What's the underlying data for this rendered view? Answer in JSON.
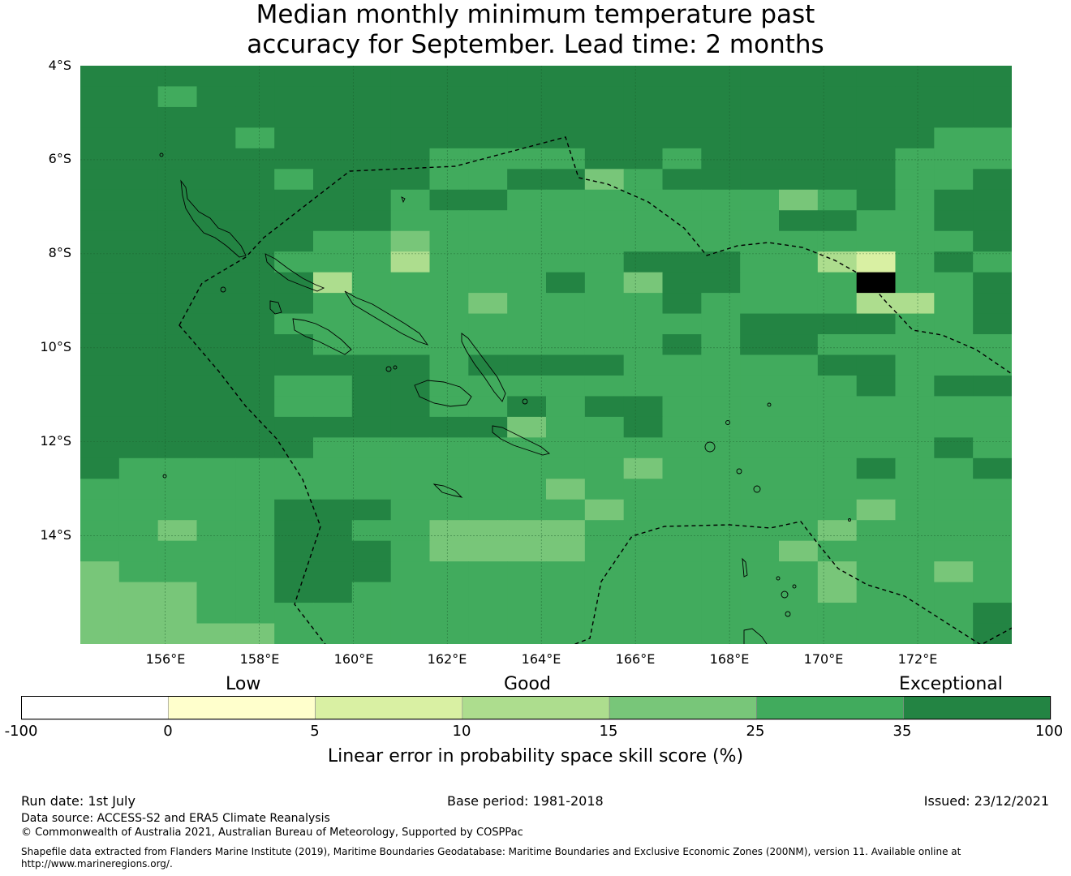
{
  "title": {
    "line1": "Median monthly minimum temperature past",
    "line2": "accuracy for September. Lead time: 2 months"
  },
  "map": {
    "lat_labels": [
      "4°S",
      "6°S",
      "8°S",
      "10°S",
      "12°S",
      "14°S"
    ],
    "lon_labels": [
      "156°E",
      "158°E",
      "160°E",
      "162°E",
      "164°E",
      "166°E",
      "168°E",
      "170°E",
      "172°E"
    ],
    "extent": {
      "lon_min": 154.2,
      "lon_max": 174.0,
      "lat_top": -4.0,
      "lat_bottom": -16.3
    },
    "grid_cells_deg": 0.8333,
    "legend_colors": [
      "#ffffff",
      "#ffffcc",
      "#d9f0a3",
      "#addd8e",
      "#78c679",
      "#41ab5d",
      "#238443"
    ],
    "cell_rows": [
      "666666666666666666666666",
      "665666666666666666666666",
      "666666666666666666666666",
      "666656666666666666666655",
      "666666666555566566666555",
      "666665666556645666666556",
      "666666665665555555456566",
      "666666665555555555665566",
      "666666554555555555555556",
      "666665553555556665532565",
      "666666355555654665557556",
      "666666555545555655553356",
      "666665555555555556666556",
      "666666555555555656655555",
      "666666666566665555566555",
      "666665566555555555556566",
      "666665566556566555555555",
      "666666666664556555555555",
      "666666555555555555555565",
      "655555555555554555556556",
      "555555555555455555555555",
      "555556665555545555554555",
      "554556655444455555545555",
      "555556665444455555455555",
      "455556665555555555545545",
      "444556655555555555545555",
      "444555555555555555555556",
      "444445555555555555555556"
    ]
  },
  "colorbar": {
    "categories": [
      "Low",
      "Good",
      "Exceptional"
    ],
    "ticks": [
      "-100",
      "0",
      "5",
      "10",
      "15",
      "25",
      "35",
      "100"
    ],
    "title": "Linear error in probability space skill score (%)"
  },
  "footer": {
    "run_date": "Run date: 1st July",
    "base_period": "Base period: 1981-2018",
    "issued": "Issued: 23/12/2021",
    "data_source": "Data source: ACCESS-S2 and ERA5 Climate Reanalysis",
    "copyright": "© Commonwealth of Australia 2021, Australian Bureau of Meteorology, Supported by COSPPac",
    "shapefile_line1": "Shapefile data extracted from Flanders Marine Institute (2019), Maritime Boundaries Geodatabase: Maritime Boundaries and Exclusive Economic Zones (200NM), version 11. Available online at",
    "shapefile_line2": "http://www.marineregions.org/."
  }
}
